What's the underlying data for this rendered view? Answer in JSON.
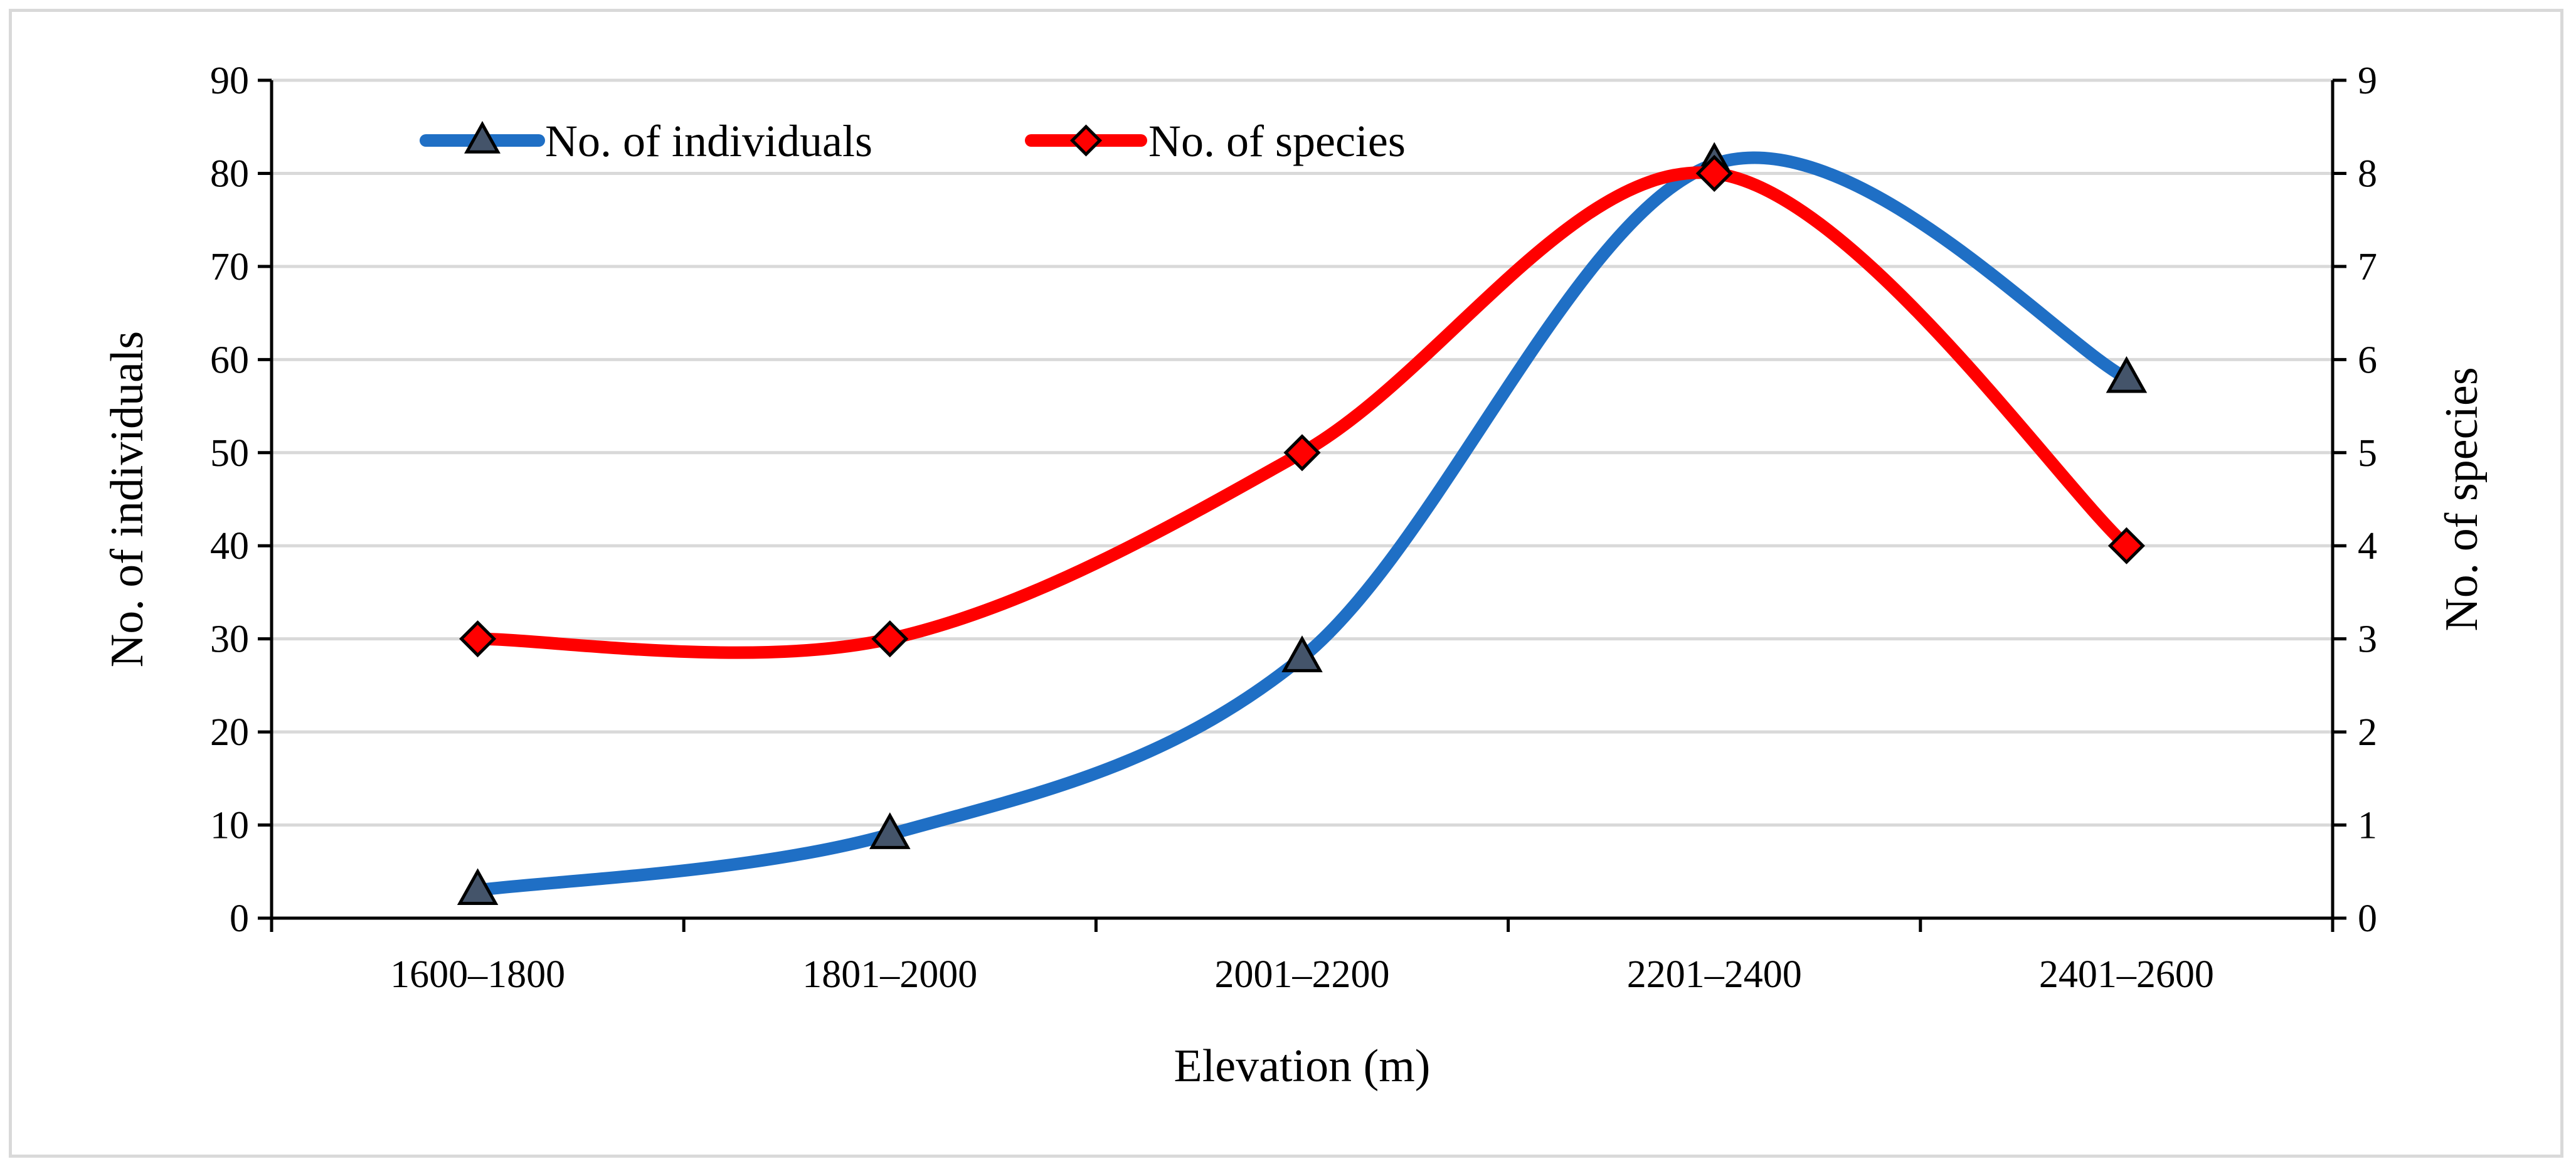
{
  "chart_data": {
    "type": "line",
    "title": "",
    "xlabel": "Elevation (m)",
    "ylabel": "No. of individuals",
    "y2label": "No. of species",
    "categories": [
      "1600–1800",
      "1801–2000",
      "2001–2200",
      "2201–2400",
      "2401–2600"
    ],
    "ylim": [
      0,
      90
    ],
    "yticks": [
      0,
      10,
      20,
      30,
      40,
      50,
      60,
      70,
      80,
      90
    ],
    "y2lim": [
      0,
      9
    ],
    "y2ticks": [
      0,
      1,
      2,
      3,
      4,
      5,
      6,
      7,
      8,
      9
    ],
    "grid": true,
    "legend_position": "top-left",
    "smooth": true,
    "series": [
      {
        "name": "No. of individuals",
        "axis": "left",
        "values": [
          3,
          9,
          28,
          81,
          58
        ],
        "color": "#1f6fc5",
        "marker": "triangle",
        "marker_fill": "#44546a"
      },
      {
        "name": "No. of species",
        "axis": "right",
        "values": [
          3,
          3,
          5,
          8,
          4
        ],
        "color": "#ff0000",
        "marker": "diamond",
        "marker_fill": "#ff0000"
      }
    ]
  }
}
